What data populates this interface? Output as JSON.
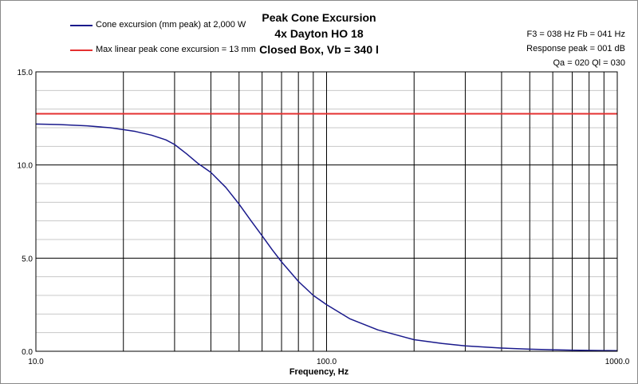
{
  "chart_data": {
    "type": "line",
    "title_lines": [
      "Peak Cone Excursion",
      "4x Dayton HO 18",
      "Closed Box, Vb = 340 l"
    ],
    "xlabel": "Frequency, Hz",
    "ylabel": "",
    "x_scale": "log",
    "xlim": [
      10,
      1000
    ],
    "ylim": [
      0,
      15
    ],
    "x_tick_labels": [
      "10.0",
      "100.0",
      "1000.0"
    ],
    "x_tick_values": [
      10,
      100,
      1000
    ],
    "y_tick_labels": [
      "0.0",
      "5.0",
      "10.0",
      "15.0"
    ],
    "y_tick_values": [
      0,
      5,
      10,
      15
    ],
    "grid": true,
    "legend_placement": "top-left",
    "info_lines": [
      "F3 = 038 Hz  Fb = 041 Hz",
      "Response peak = 001 dB",
      "Qa = 020  Ql = 030"
    ],
    "series": [
      {
        "name": "Cone excursion (mm peak) at 2,000 W",
        "color": "#1a1a8c",
        "x": [
          10,
          12,
          15,
          18,
          20,
          22,
          25,
          28,
          30,
          33,
          36,
          40,
          45,
          50,
          55,
          60,
          65,
          70,
          80,
          90,
          100,
          120,
          150,
          200,
          250,
          300,
          400,
          500,
          600,
          700,
          800,
          900,
          1000
        ],
        "y": [
          12.2,
          12.17,
          12.1,
          12.0,
          11.9,
          11.8,
          11.6,
          11.35,
          11.1,
          10.6,
          10.1,
          9.6,
          8.8,
          7.9,
          7.0,
          6.2,
          5.45,
          4.8,
          3.75,
          3.0,
          2.5,
          1.75,
          1.15,
          0.62,
          0.42,
          0.29,
          0.17,
          0.11,
          0.08,
          0.06,
          0.05,
          0.04,
          0.03
        ]
      },
      {
        "name": "Max linear peak cone excursion = 13 mm",
        "color": "#e53030",
        "x": [
          10,
          1000
        ],
        "y": [
          12.75,
          12.75
        ]
      }
    ]
  }
}
